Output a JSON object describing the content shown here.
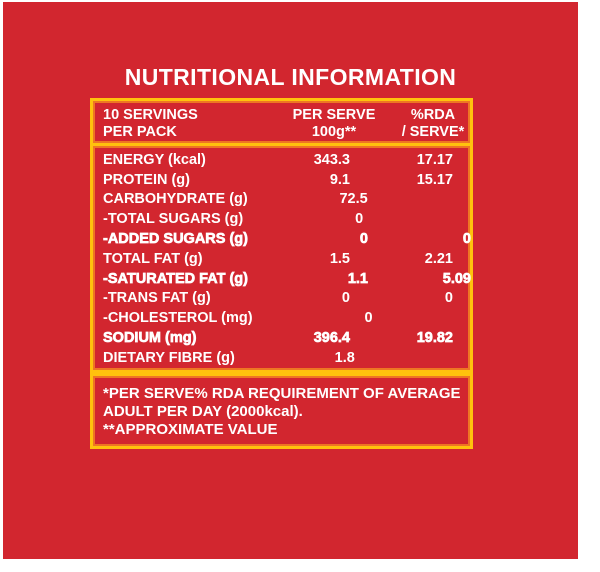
{
  "colors": {
    "card_red": "#d2262f",
    "border_yellow": "#ffc20d",
    "border_orange": "#ee7623",
    "text": "#ffffff"
  },
  "title": "NUTRITIONAL INFORMATION",
  "table": {
    "header": {
      "col1_line1": "10 SERVINGS",
      "col1_line2": "PER PACK",
      "col2_line1": "PER SERVE",
      "col2_line2": "100g**",
      "col3_line1": "%RDA",
      "col3_line2": "/ SERVE*"
    },
    "rows": [
      {
        "label": "ENERGY (kcal)",
        "per_serve": "343.3",
        "rda": "17.17",
        "bold": false
      },
      {
        "label": "PROTEIN (g)",
        "per_serve": "9.1",
        "rda": "15.17",
        "bold": false
      },
      {
        "label": "CARBOHYDRATE (g)",
        "per_serve": "72.5",
        "rda": "",
        "bold": false
      },
      {
        "label": "-TOTAL SUGARS (g)",
        "per_serve": "0",
        "rda": "",
        "bold": false
      },
      {
        "label": "-ADDED SUGARS (g)",
        "per_serve": "0",
        "rda": "0",
        "bold": true
      },
      {
        "label": "TOTAL FAT (g)",
        "per_serve": "1.5",
        "rda": "2.21",
        "bold": false
      },
      {
        "label": "-SATURATED FAT (g)",
        "per_serve": "1.1",
        "rda": "5.09",
        "bold": true
      },
      {
        "label": "-TRANS FAT (g)",
        "per_serve": "0",
        "rda": "0",
        "bold": false
      },
      {
        "label": "-CHOLESTEROL (mg)",
        "per_serve": "0",
        "rda": "",
        "bold": false
      },
      {
        "label": "SODIUM (mg)",
        "per_serve": "396.4",
        "rda": "19.82",
        "bold": true
      },
      {
        "label": "DIETARY FIBRE (g)",
        "per_serve": "1.8",
        "rda": "",
        "bold": false
      }
    ],
    "footnotes": [
      "*PER SERVE% RDA REQUIREMENT OF AVERAGE",
      "ADULT PER DAY (2000kcal).",
      "**APPROXIMATE VALUE"
    ]
  }
}
